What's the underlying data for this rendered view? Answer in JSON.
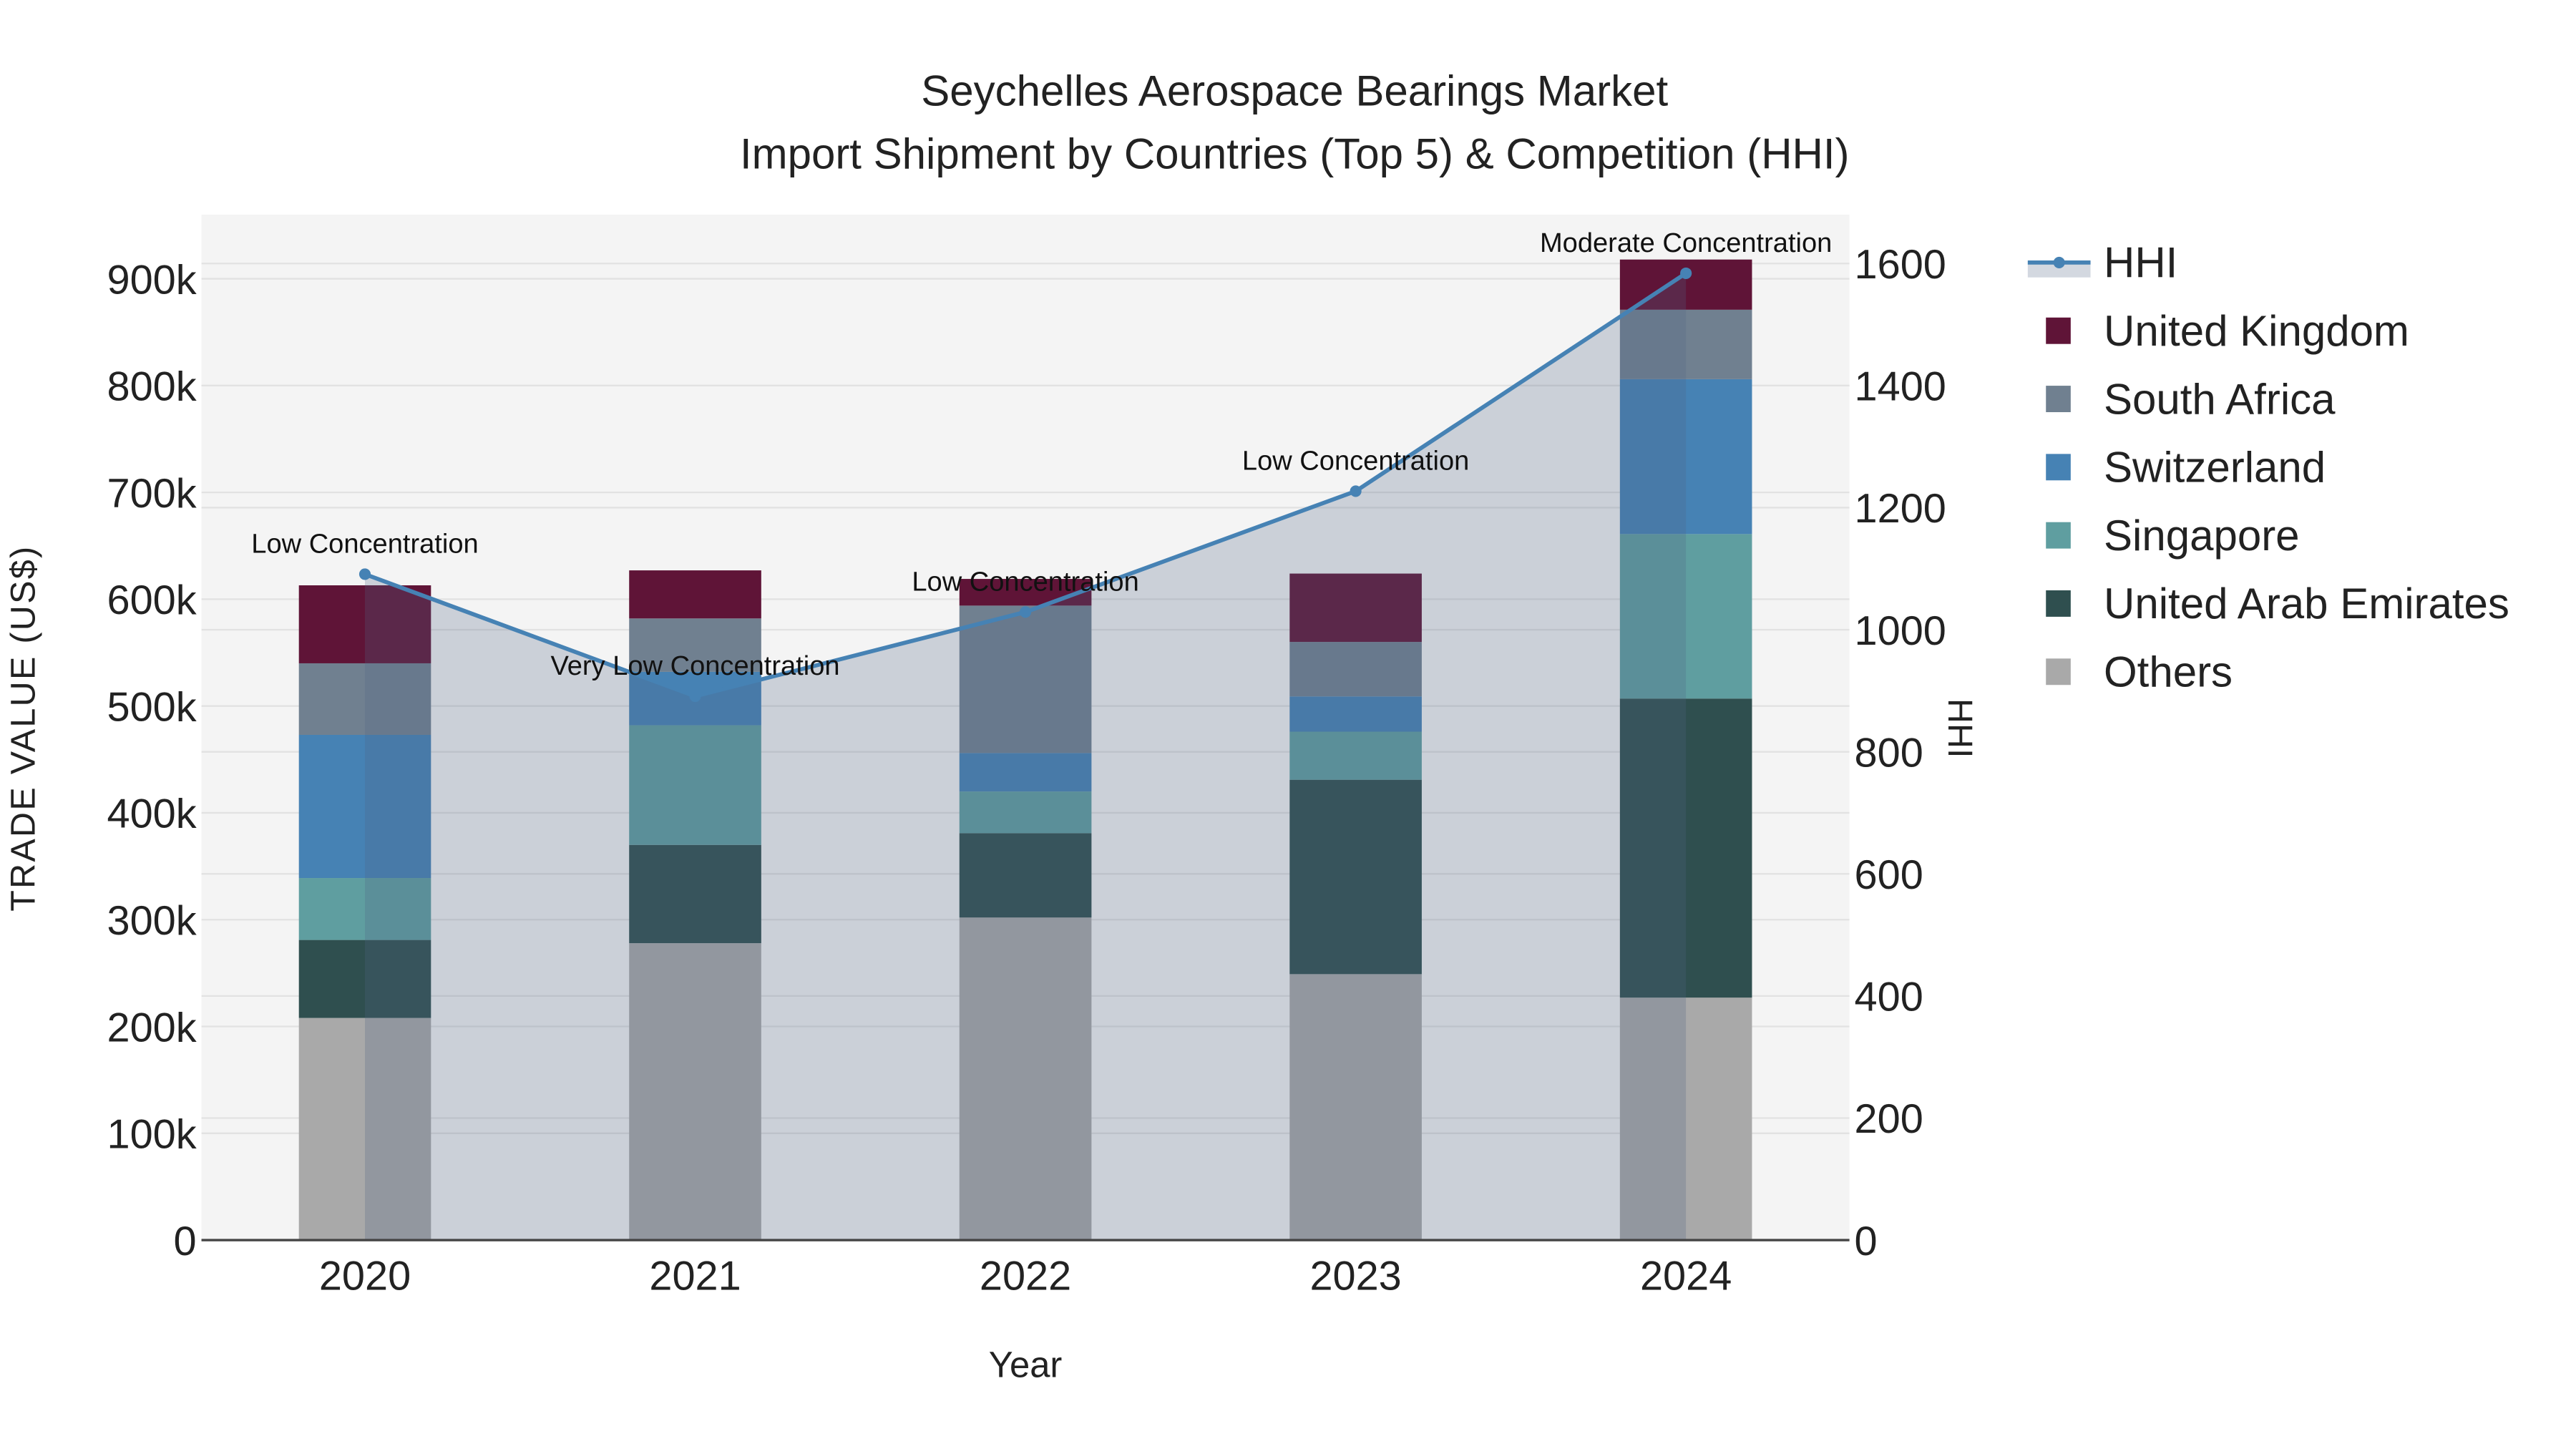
{
  "chart_data": {
    "type": "bar",
    "stacked": true,
    "title": "Seychelles Aerospace Bearings Market",
    "subtitle": "Import Shipment by Countries (Top 5) & Competition (HHI)",
    "xlabel": "Year",
    "ylabel": "TRADE VALUE (US$)",
    "y2label": "HHI",
    "categories": [
      "2020",
      "2021",
      "2022",
      "2023",
      "2024"
    ],
    "ylim": [
      0,
      960000
    ],
    "y_ticks": [
      0,
      100000,
      200000,
      300000,
      400000,
      500000,
      600000,
      700000,
      800000,
      900000
    ],
    "y_tick_labels": [
      "0",
      "100k",
      "200k",
      "300k",
      "400k",
      "500k",
      "600k",
      "700k",
      "800k",
      "900k"
    ],
    "y2lim": [
      0,
      1680
    ],
    "y2_ticks": [
      0,
      200,
      400,
      600,
      800,
      1000,
      1200,
      1400,
      1600
    ],
    "y2_tick_labels": [
      "0",
      "200",
      "400",
      "600",
      "800",
      "1000",
      "1200",
      "1400",
      "1600"
    ],
    "series": [
      {
        "name": "Others",
        "color": "#a9a9a9",
        "values": [
          208000,
          278000,
          302000,
          249000,
          227000
        ]
      },
      {
        "name": "United Arab Emirates",
        "color": "#2f4f4f",
        "values": [
          73000,
          92000,
          79000,
          182000,
          280000
        ]
      },
      {
        "name": "Singapore",
        "color": "#5f9ea0",
        "values": [
          58000,
          112000,
          39000,
          45000,
          154000
        ]
      },
      {
        "name": "Switzerland",
        "color": "#4682b4",
        "values": [
          134000,
          50000,
          36000,
          33000,
          145000
        ]
      },
      {
        "name": "South Africa",
        "color": "#708090",
        "values": [
          67000,
          50000,
          138000,
          51000,
          65000
        ]
      },
      {
        "name": "United Kingdom",
        "color": "#5f1437",
        "values": [
          73000,
          45000,
          25000,
          64000,
          47000
        ]
      }
    ],
    "hhi": {
      "name": "HHI",
      "color": "#4682b4",
      "values": [
        1091,
        891,
        1029,
        1227,
        1584
      ],
      "annotations": [
        "Low Concentration",
        "Very Low Concentration",
        "Low Concentration",
        "Low Concentration",
        "Moderate Concentration"
      ]
    },
    "legend": [
      "HHI",
      "United Kingdom",
      "South Africa",
      "Switzerland",
      "Singapore",
      "United Arab Emirates",
      "Others"
    ],
    "legend_position": "right",
    "grid": true
  }
}
